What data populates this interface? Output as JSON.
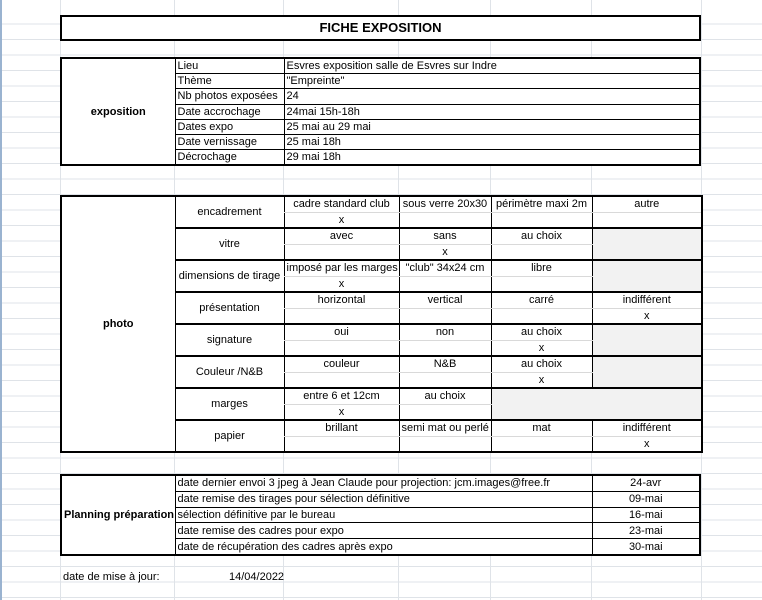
{
  "title": "FICHE EXPOSITION",
  "exposition": {
    "label": "exposition",
    "rows": [
      {
        "key": "Lieu",
        "value": "Esvres exposition salle de Esvres sur Indre"
      },
      {
        "key": "Thème",
        "value": "\"Empreinte\""
      },
      {
        "key": "Nb photos exposées",
        "value": "24"
      },
      {
        "key": "Date accrochage",
        "value": "24mai  15h-18h"
      },
      {
        "key": "Dates expo",
        "value": "25 mai au 29 mai"
      },
      {
        "key": "Date vernissage",
        "value": "25 mai 18h"
      },
      {
        "key": "Décrochage",
        "value": "29 mai 18h"
      }
    ]
  },
  "photo": {
    "label": "photo",
    "categories": [
      {
        "name": "encadrement",
        "options": [
          "cadre standard club",
          "sous verre 20x30",
          "périmètre maxi 2m",
          "autre"
        ],
        "selected": 0
      },
      {
        "name": "vitre",
        "options": [
          "avec",
          "sans",
          "au choix"
        ],
        "selected": 1
      },
      {
        "name": "dimensions de tirage",
        "options": [
          "imposé par les marges",
          "\"club\" 34x24 cm",
          "libre"
        ],
        "selected": 0
      },
      {
        "name": "présentation",
        "options": [
          "horizontal",
          "vertical",
          "carré",
          "indifférent"
        ],
        "selected": 3
      },
      {
        "name": "signature",
        "options": [
          "oui",
          "non",
          "au choix"
        ],
        "selected": 2
      },
      {
        "name": "Couleur /N&B",
        "options": [
          "couleur",
          "N&B",
          "au choix"
        ],
        "selected": 2
      },
      {
        "name": "marges",
        "options": [
          "entre 6 et 12cm",
          "au choix"
        ],
        "selected": 0
      },
      {
        "name": "papier",
        "options": [
          "brillant",
          "semi mat ou perlé",
          "mat",
          "indifférent"
        ],
        "selected": 3
      }
    ],
    "mark": "x",
    "gray_color": "#f2f2f2"
  },
  "planning": {
    "label": "Planning préparation",
    "rows": [
      {
        "task": "date dernier envoi 3  jpeg à Jean Claude pour projection: jcm.images@free.fr",
        "date": "24-avr"
      },
      {
        "task": "date remise des tirages pour sélection définitive",
        "date": "09-mai"
      },
      {
        "task": "sélection définitive par le bureau",
        "date": "16-mai"
      },
      {
        "task": "date remise des cadres pour expo",
        "date": "23-mai"
      },
      {
        "task": "date de récupération des cadres après expo",
        "date": "30-mai"
      }
    ]
  },
  "footer": {
    "label": "date de mise à jour:",
    "value": "14/04/2022"
  }
}
